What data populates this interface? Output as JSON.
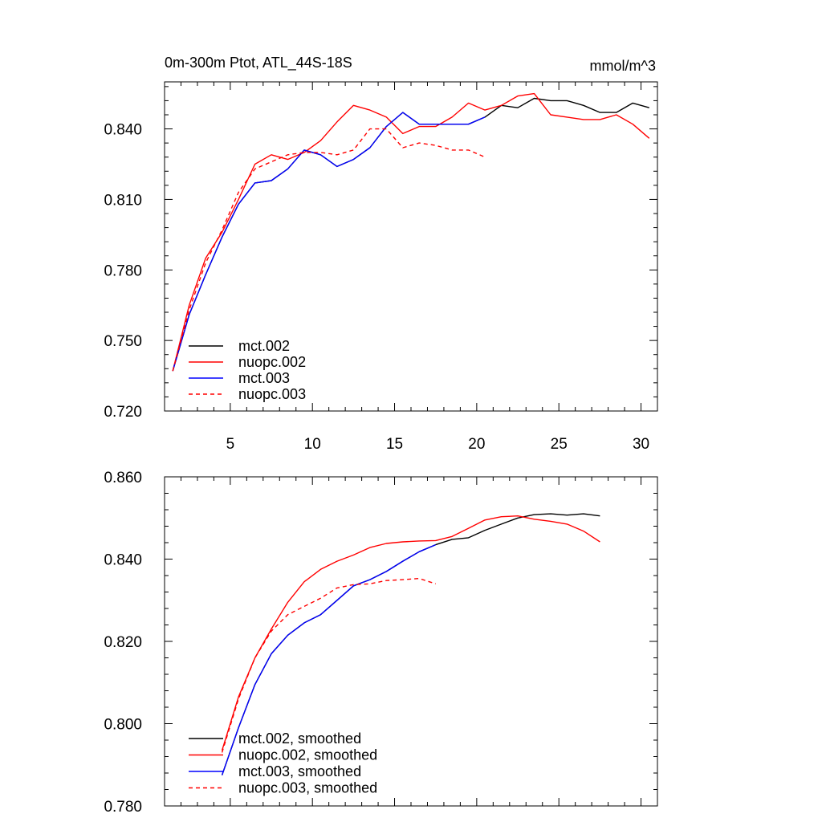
{
  "chart_data": [
    {
      "type": "line",
      "title": "0m-300m Ptot, ATL_44S-18S",
      "units": "mmol/m^3",
      "xlabel": "",
      "ylabel": "",
      "xlim": [
        1,
        31
      ],
      "ylim": [
        0.72,
        0.86
      ],
      "xticks": [
        5,
        10,
        15,
        20,
        25,
        30
      ],
      "xtick_labels": [
        "5",
        "10",
        "15",
        "20",
        "25",
        "30"
      ],
      "yticks": [
        0.72,
        0.75,
        0.78,
        0.81,
        0.84
      ],
      "ytick_labels": [
        "0.720",
        "0.750",
        "0.780",
        "0.810",
        "0.840"
      ],
      "legend_position": "bottom-left",
      "series": [
        {
          "name": "mct.002",
          "color": "#000000",
          "dash": "solid",
          "x": [
            1.5,
            2.5,
            3.5,
            4.5,
            5.5,
            6.5,
            7.5,
            8.5,
            9.5,
            10.5,
            11.5,
            12.5,
            13.5,
            14.5,
            15.5,
            16.5,
            17.5,
            18.5,
            19.5,
            20.5,
            21.5,
            22.5,
            23.5,
            24.5,
            25.5,
            26.5,
            27.5,
            28.5,
            29.5,
            30.5
          ],
          "y": [
            0.737,
            0.761,
            0.778,
            0.794,
            0.808,
            0.817,
            0.818,
            0.823,
            0.831,
            0.829,
            0.824,
            0.827,
            0.832,
            0.841,
            0.847,
            0.842,
            0.842,
            0.842,
            0.842,
            0.845,
            0.85,
            0.849,
            0.853,
            0.852,
            0.852,
            0.85,
            0.847,
            0.847,
            0.851,
            0.849
          ]
        },
        {
          "name": "nuopc.002",
          "color": "#ff0000",
          "dash": "solid",
          "x": [
            1.5,
            2.5,
            3.5,
            4.5,
            5.5,
            6.5,
            7.5,
            8.5,
            9.5,
            10.5,
            11.5,
            12.5,
            13.5,
            14.5,
            15.5,
            16.5,
            17.5,
            18.5,
            19.5,
            20.5,
            21.5,
            22.5,
            23.5,
            24.5,
            25.5,
            26.5,
            27.5,
            28.5,
            29.5,
            30.5
          ],
          "y": [
            0.737,
            0.765,
            0.785,
            0.796,
            0.81,
            0.825,
            0.829,
            0.827,
            0.83,
            0.835,
            0.843,
            0.85,
            0.848,
            0.845,
            0.838,
            0.841,
            0.841,
            0.845,
            0.851,
            0.848,
            0.85,
            0.854,
            0.855,
            0.846,
            0.845,
            0.844,
            0.844,
            0.846,
            0.842,
            0.836
          ]
        },
        {
          "name": "mct.003",
          "color": "#0000ff",
          "dash": "solid",
          "x": [
            1.5,
            2.5,
            3.5,
            4.5,
            5.5,
            6.5,
            7.5,
            8.5,
            9.5,
            10.5,
            11.5,
            12.5,
            13.5,
            14.5,
            15.5,
            16.5,
            17.5,
            18.5,
            19.5,
            20.5
          ],
          "y": [
            0.737,
            0.761,
            0.778,
            0.794,
            0.808,
            0.817,
            0.818,
            0.823,
            0.831,
            0.829,
            0.824,
            0.827,
            0.832,
            0.841,
            0.847,
            0.842,
            0.842,
            0.842,
            0.842,
            0.845
          ]
        },
        {
          "name": "nuopc.003",
          "color": "#ff0000",
          "dash": "dashed",
          "x": [
            1.5,
            2.5,
            3.5,
            4.5,
            5.5,
            6.5,
            7.5,
            8.5,
            9.5,
            10.5,
            11.5,
            12.5,
            13.5,
            14.5,
            15.5,
            16.5,
            17.5,
            18.5,
            19.5,
            20.5
          ],
          "y": [
            0.737,
            0.763,
            0.783,
            0.797,
            0.813,
            0.823,
            0.826,
            0.829,
            0.83,
            0.83,
            0.829,
            0.831,
            0.84,
            0.84,
            0.832,
            0.834,
            0.833,
            0.831,
            0.831,
            0.828
          ]
        }
      ]
    },
    {
      "type": "line",
      "title": "",
      "xlabel": "",
      "ylabel": "",
      "xlim": [
        1,
        31
      ],
      "ylim": [
        0.78,
        0.86
      ],
      "xticks": [
        5,
        10,
        15,
        20,
        25,
        30
      ],
      "yticks": [
        0.78,
        0.8,
        0.82,
        0.84,
        0.86
      ],
      "ytick_labels": [
        "0.780",
        "0.800",
        "0.820",
        "0.840",
        "0.860"
      ],
      "legend_position": "bottom-left",
      "series": [
        {
          "name": "mct.002, smoothed",
          "color": "#000000",
          "dash": "solid",
          "x": [
            4.5,
            5.5,
            6.5,
            7.5,
            8.5,
            9.5,
            10.5,
            11.5,
            12.5,
            13.5,
            14.5,
            15.5,
            16.5,
            17.5,
            18.5,
            19.5,
            20.5,
            21.5,
            22.5,
            23.5,
            24.5,
            25.5,
            26.5,
            27.5
          ],
          "y": [
            0.7875,
            0.799,
            0.8095,
            0.817,
            0.8215,
            0.8245,
            0.8265,
            0.83,
            0.8335,
            0.835,
            0.837,
            0.8395,
            0.8418,
            0.8435,
            0.8448,
            0.8452,
            0.847,
            0.8485,
            0.85,
            0.8508,
            0.851,
            0.8507,
            0.851,
            0.8505
          ]
        },
        {
          "name": "nuopc.002, smoothed",
          "color": "#ff0000",
          "dash": "solid",
          "x": [
            4.5,
            5.5,
            6.5,
            7.5,
            8.5,
            9.5,
            10.5,
            11.5,
            12.5,
            13.5,
            14.5,
            15.5,
            16.5,
            17.5,
            18.5,
            19.5,
            20.5,
            21.5,
            22.5,
            23.5,
            24.5,
            25.5,
            26.5,
            27.5
          ],
          "y": [
            0.7935,
            0.8065,
            0.816,
            0.823,
            0.8295,
            0.8345,
            0.8375,
            0.8395,
            0.841,
            0.8428,
            0.8438,
            0.8442,
            0.8444,
            0.8445,
            0.8455,
            0.8475,
            0.8495,
            0.8503,
            0.8505,
            0.8497,
            0.8492,
            0.8485,
            0.8468,
            0.8442
          ]
        },
        {
          "name": "mct.003, smoothed",
          "color": "#0000ff",
          "dash": "solid",
          "x": [
            4.5,
            5.5,
            6.5,
            7.5,
            8.5,
            9.5,
            10.5,
            11.5,
            12.5,
            13.5,
            14.5,
            15.5,
            16.5,
            17.5
          ],
          "y": [
            0.7875,
            0.799,
            0.8095,
            0.817,
            0.8215,
            0.8245,
            0.8265,
            0.83,
            0.8335,
            0.835,
            0.837,
            0.8395,
            0.8418,
            0.8435
          ]
        },
        {
          "name": "nuopc.003, smoothed",
          "color": "#ff0000",
          "dash": "dashed",
          "x": [
            4.5,
            5.5,
            6.5,
            7.5,
            8.5,
            9.5,
            10.5,
            11.5,
            12.5,
            13.5,
            14.5,
            15.5,
            16.5,
            17.5
          ],
          "y": [
            0.793,
            0.806,
            0.816,
            0.8225,
            0.8265,
            0.8285,
            0.8305,
            0.833,
            0.8338,
            0.834,
            0.8348,
            0.835,
            0.8353,
            0.834
          ]
        }
      ]
    }
  ]
}
